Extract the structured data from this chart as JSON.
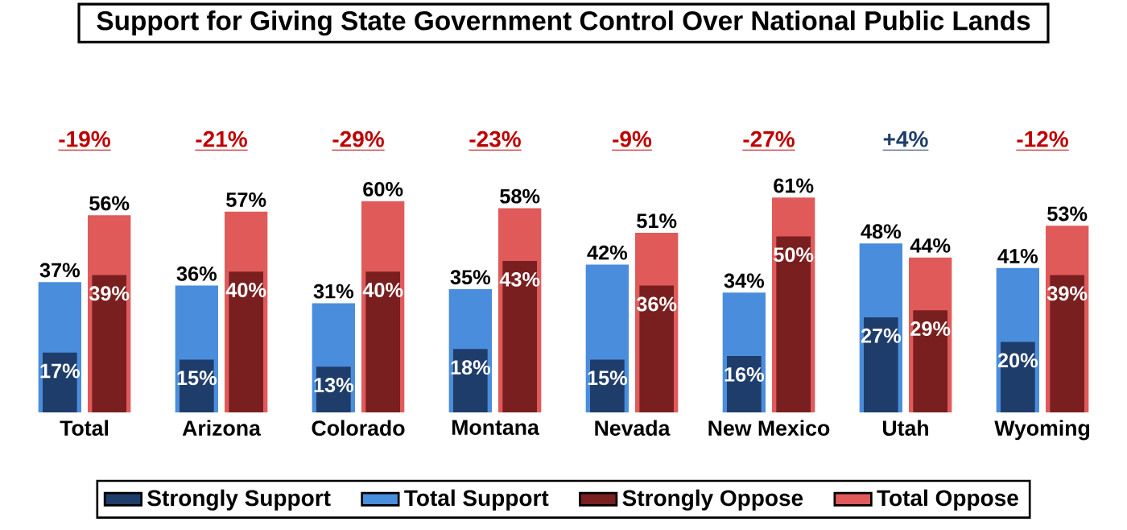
{
  "chart_data": {
    "type": "bar",
    "title": "Support for Giving State Government Control Over National Public Lands",
    "categories": [
      "Total",
      "Arizona",
      "Colorado",
      "Montana",
      "Nevada",
      "New Mexico",
      "Utah",
      "Wyoming"
    ],
    "series": [
      {
        "name": "Strongly Support",
        "color": "#1f3d6b",
        "values": [
          17,
          15,
          13,
          18,
          15,
          16,
          27,
          20
        ],
        "value_labels": [
          "17%",
          "15%",
          "13%",
          "18%",
          "15%",
          "16%",
          "27%",
          "20%"
        ]
      },
      {
        "name": "Total Support",
        "color": "#4a8ddc",
        "values": [
          37,
          36,
          31,
          35,
          42,
          34,
          48,
          41
        ],
        "value_labels": [
          "37%",
          "36%",
          "31%",
          "35%",
          "42%",
          "34%",
          "48%",
          "41%"
        ]
      },
      {
        "name": "Strongly Oppose",
        "color": "#7a1f1f",
        "values": [
          39,
          40,
          40,
          43,
          36,
          50,
          29,
          39
        ],
        "value_labels": [
          "39%",
          "40%",
          "40%",
          "43%",
          "36%",
          "50%",
          "29%",
          "39%"
        ]
      },
      {
        "name": "Total Oppose",
        "color": "#e05a5a",
        "values": [
          56,
          57,
          60,
          58,
          51,
          61,
          44,
          53
        ],
        "value_labels": [
          "56%",
          "57%",
          "60%",
          "58%",
          "51%",
          "61%",
          "44%",
          "53%"
        ]
      }
    ],
    "annotations": [
      "-19%",
      "-21%",
      "-29%",
      "-23%",
      "-9%",
      "-27%",
      "+4%",
      "-12%"
    ],
    "legend": "bottom"
  }
}
